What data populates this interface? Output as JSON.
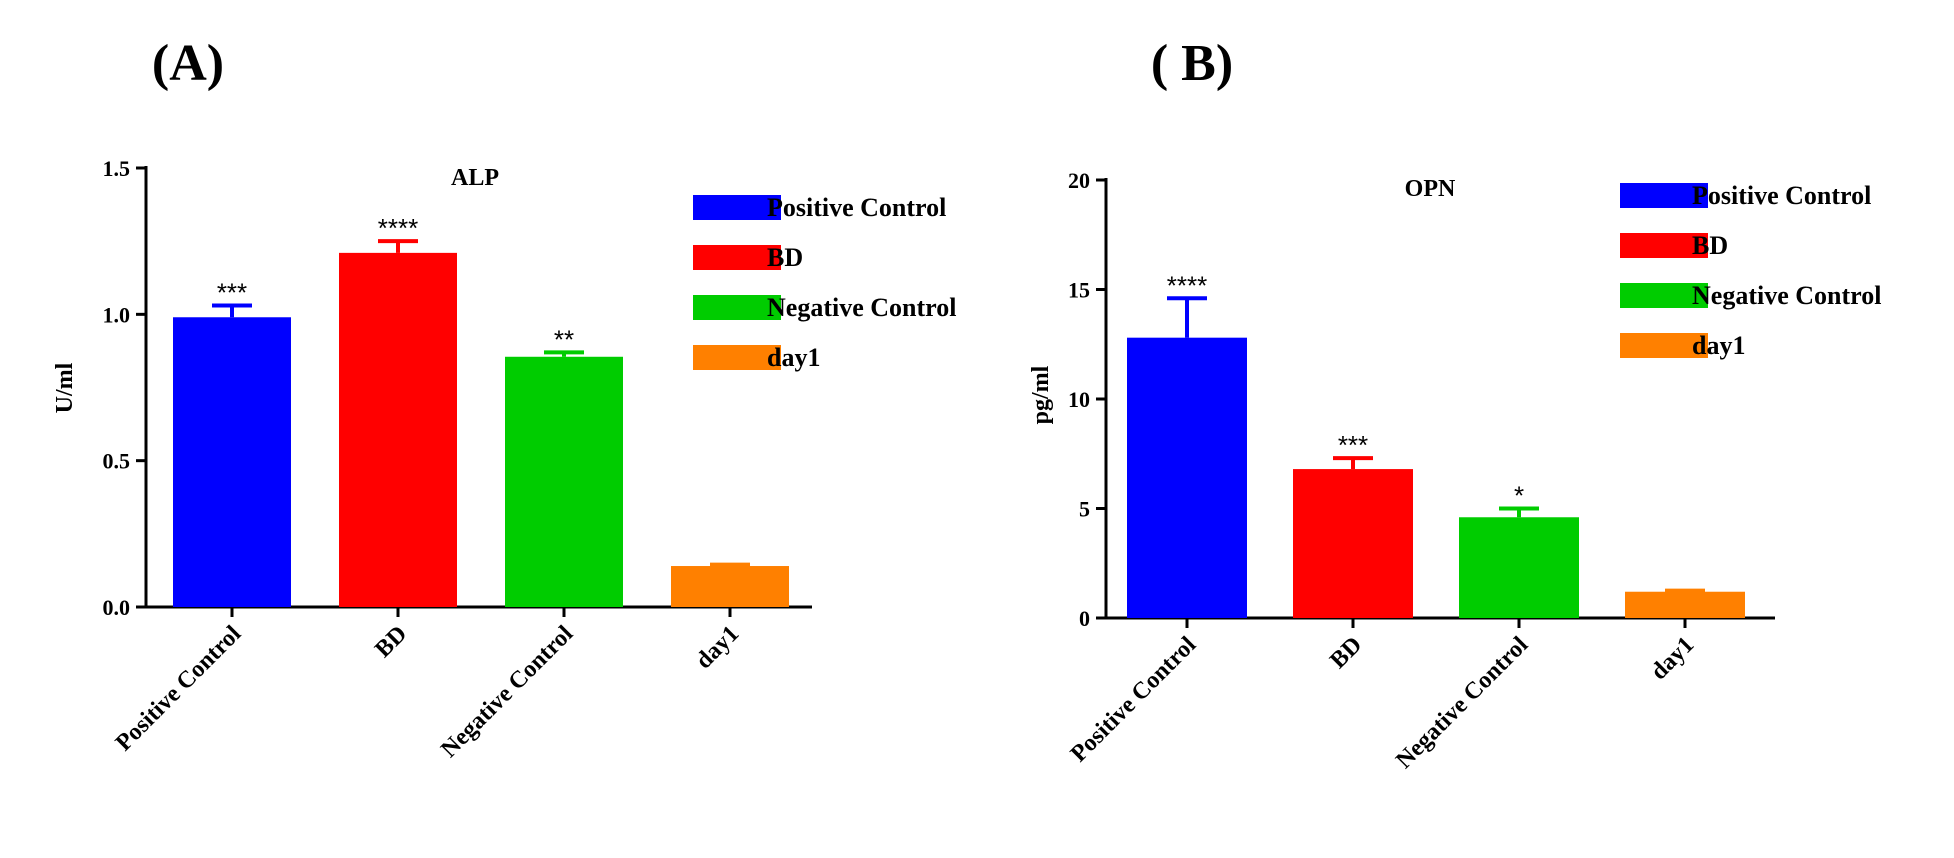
{
  "chart_data": [
    {
      "type": "bar",
      "panel_label": "(A)",
      "title": "ALP",
      "xlabel": "",
      "ylabel": "U/ml",
      "ylim": [
        0,
        1.5
      ],
      "yticks": [
        0.0,
        0.5,
        1.0,
        1.5
      ],
      "ytick_labels": [
        "0.0",
        "0.5",
        "1.0",
        "1.5"
      ],
      "categories": [
        "Positive Control",
        "BD",
        "Negative Control",
        "day1"
      ],
      "values": [
        0.99,
        1.21,
        0.855,
        0.14
      ],
      "errors": [
        0.04,
        0.04,
        0.015,
        0.005
      ],
      "significance": [
        "***",
        "****",
        "**",
        ""
      ],
      "colors": [
        "#0000ff",
        "#ff0000",
        "#00cc00",
        "#ff8000"
      ],
      "legend": [
        {
          "label": "Positive Control",
          "color": "#0000ff"
        },
        {
          "label": "BD",
          "color": "#ff0000"
        },
        {
          "label": "Negative Control",
          "color": "#00cc00"
        },
        {
          "label": "day1",
          "color": "#ff8000"
        }
      ],
      "legend_position": "top-right"
    },
    {
      "type": "bar",
      "panel_label": "( B)",
      "title": "OPN",
      "xlabel": "",
      "ylabel": "pg/ml",
      "ylim": [
        0,
        20
      ],
      "yticks": [
        0,
        5,
        10,
        15,
        20
      ],
      "ytick_labels": [
        "0",
        "5",
        "10",
        "15",
        "20"
      ],
      "categories": [
        "Positive Control",
        "BD",
        "Negative Control",
        "day1"
      ],
      "values": [
        12.8,
        6.8,
        4.6,
        1.2
      ],
      "errors": [
        1.8,
        0.5,
        0.4,
        0.05
      ],
      "significance": [
        "****",
        "***",
        "*",
        ""
      ],
      "colors": [
        "#0000ff",
        "#ff0000",
        "#00cc00",
        "#ff8000"
      ],
      "legend": [
        {
          "label": "Positive Control",
          "color": "#0000ff"
        },
        {
          "label": "BD",
          "color": "#ff0000"
        },
        {
          "label": "Negative Control",
          "color": "#00cc00"
        },
        {
          "label": "day1",
          "color": "#ff8000"
        }
      ],
      "legend_position": "top-right"
    }
  ]
}
